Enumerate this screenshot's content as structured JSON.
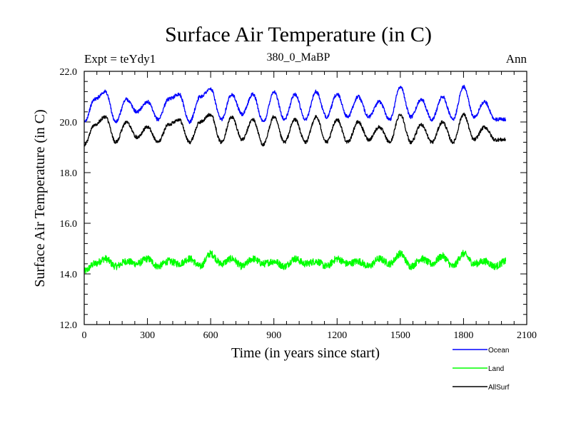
{
  "chart_data": {
    "type": "line",
    "title": "Surface Air Temperature (in C)",
    "subtitle_left": "Expt = teYdy1",
    "subtitle_center": "380_0_MaBP",
    "subtitle_right": "Ann",
    "xlabel": "Time (in years since start)",
    "ylabel": "Surface Air Temperature (in C)",
    "xlim": [
      0,
      2100
    ],
    "ylim": [
      12.0,
      22.0
    ],
    "xticks": [
      0,
      300,
      600,
      900,
      1200,
      1500,
      1800,
      2100
    ],
    "xtick_labels": [
      "0",
      "300",
      "600",
      "900",
      "1200",
      "1500",
      "1800",
      "2100"
    ],
    "yticks": [
      12.0,
      14.0,
      16.0,
      18.0,
      20.0,
      22.0
    ],
    "ytick_labels": [
      "12.0",
      "14.0",
      "16.0",
      "18.0",
      "20.0",
      "22.0"
    ],
    "grid": false,
    "legend_position": "bottom-right",
    "series": [
      {
        "name": "Ocean",
        "color": "#0000ff",
        "x": [
          0,
          50,
          100,
          150,
          200,
          250,
          300,
          350,
          400,
          450,
          500,
          550,
          600,
          650,
          700,
          750,
          800,
          850,
          900,
          950,
          1000,
          1050,
          1100,
          1150,
          1200,
          1250,
          1300,
          1350,
          1400,
          1450,
          1500,
          1550,
          1600,
          1650,
          1700,
          1750,
          1800,
          1850,
          1900,
          1950,
          2000
        ],
        "values": [
          20.0,
          20.9,
          21.2,
          20.0,
          20.9,
          20.4,
          20.8,
          20.1,
          20.9,
          21.1,
          20.0,
          21.0,
          21.3,
          20.1,
          21.1,
          20.3,
          21.1,
          20.0,
          21.2,
          20.1,
          21.1,
          20.1,
          21.2,
          20.2,
          21.1,
          20.2,
          21.0,
          20.2,
          20.8,
          20.1,
          21.4,
          20.2,
          20.9,
          20.1,
          21.0,
          20.1,
          21.4,
          20.2,
          20.8,
          20.1,
          20.1
        ]
      },
      {
        "name": "Land",
        "color": "#00ff00",
        "x": [
          0,
          50,
          100,
          150,
          200,
          250,
          300,
          350,
          400,
          450,
          500,
          550,
          600,
          650,
          700,
          750,
          800,
          850,
          900,
          950,
          1000,
          1050,
          1100,
          1150,
          1200,
          1250,
          1300,
          1350,
          1400,
          1450,
          1500,
          1550,
          1600,
          1650,
          1700,
          1750,
          1800,
          1850,
          1900,
          1950,
          2000
        ],
        "values": [
          14.1,
          14.4,
          14.6,
          14.3,
          14.5,
          14.4,
          14.6,
          14.3,
          14.5,
          14.4,
          14.6,
          14.3,
          14.8,
          14.4,
          14.6,
          14.3,
          14.6,
          14.4,
          14.5,
          14.3,
          14.6,
          14.4,
          14.5,
          14.3,
          14.6,
          14.4,
          14.5,
          14.3,
          14.6,
          14.4,
          14.8,
          14.3,
          14.6,
          14.4,
          14.7,
          14.3,
          14.8,
          14.4,
          14.5,
          14.3,
          14.5
        ]
      },
      {
        "name": "AllSurf",
        "color": "#000000",
        "x": [
          0,
          50,
          100,
          150,
          200,
          250,
          300,
          350,
          400,
          450,
          500,
          550,
          600,
          650,
          700,
          750,
          800,
          850,
          900,
          950,
          1000,
          1050,
          1100,
          1150,
          1200,
          1250,
          1300,
          1350,
          1400,
          1450,
          1500,
          1550,
          1600,
          1650,
          1700,
          1750,
          1800,
          1850,
          1900,
          1950,
          2000
        ],
        "values": [
          19.1,
          19.9,
          20.2,
          19.2,
          20.0,
          19.4,
          19.8,
          19.2,
          19.9,
          20.1,
          19.2,
          20.0,
          20.3,
          19.2,
          20.2,
          19.3,
          20.1,
          19.1,
          20.2,
          19.2,
          20.1,
          19.2,
          20.2,
          19.2,
          20.1,
          19.2,
          20.0,
          19.3,
          19.8,
          19.2,
          20.3,
          19.2,
          19.9,
          19.2,
          20.0,
          19.2,
          20.3,
          19.3,
          19.8,
          19.3,
          19.3
        ]
      }
    ]
  }
}
